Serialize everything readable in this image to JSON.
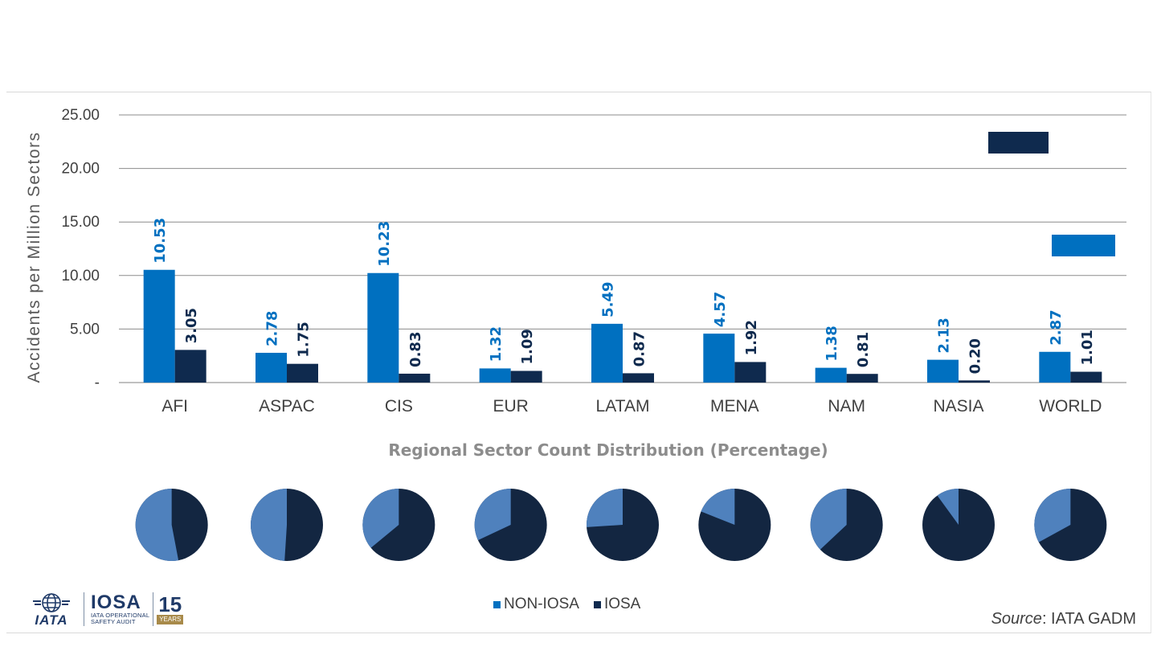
{
  "chart_data": {
    "type": "bar",
    "title": "",
    "ylabel": "Accidents per Million Sectors",
    "xlabel": "",
    "ylim": [
      0,
      25
    ],
    "y_ticks": [
      "-",
      "5.00",
      "10.00",
      "15.00",
      "20.00",
      "25.00"
    ],
    "grid": "horizontal",
    "categories": [
      "AFI",
      "ASPAC",
      "CIS",
      "EUR",
      "LATAM",
      "MENA",
      "NAM",
      "NASIA",
      "WORLD"
    ],
    "series": [
      {
        "name": "NON-IOSA",
        "color": "#0070c0",
        "values": [
          10.53,
          2.78,
          10.23,
          1.32,
          5.49,
          4.57,
          1.38,
          2.13,
          2.87
        ],
        "labels": [
          "10.53",
          "2.78",
          "10.23",
          "1.32",
          "5.49",
          "4.57",
          "1.38",
          "2.13",
          "2.87"
        ]
      },
      {
        "name": "IOSA",
        "color": "#0f2a4e",
        "values": [
          3.05,
          1.75,
          0.83,
          1.09,
          0.87,
          1.92,
          0.81,
          0.2,
          1.01
        ],
        "labels": [
          "3.05",
          "1.75",
          "0.83",
          "1.09",
          "0.87",
          "1.92",
          "0.81",
          "0.20",
          "1.01"
        ]
      }
    ],
    "legend_position": "bottom-center",
    "pie_charts": {
      "title": "Regional Sector Count Distribution (Percentage)",
      "regions": [
        "AFI",
        "ASPAC",
        "CIS",
        "EUR",
        "LATAM",
        "MENA",
        "NAM",
        "NASIA",
        "WORLD"
      ],
      "non_iosa_share": [
        53,
        49,
        36,
        32,
        26,
        19,
        37,
        10,
        33
      ],
      "non_iosa_color": "#4f81bd",
      "iosa_color": "#132641"
    }
  },
  "legend": {
    "non_iosa": "NON-IOSA",
    "iosa": "IOSA"
  },
  "source": {
    "label": "Source",
    "text": ": IATA GADM"
  },
  "logo": {
    "iata": "IATA",
    "iosa": "IOSA",
    "iosa_sub_1": "IATA OPERATIONAL",
    "iosa_sub_2": "SAFETY AUDIT",
    "years_num": "15",
    "years_word": "YEARS"
  }
}
